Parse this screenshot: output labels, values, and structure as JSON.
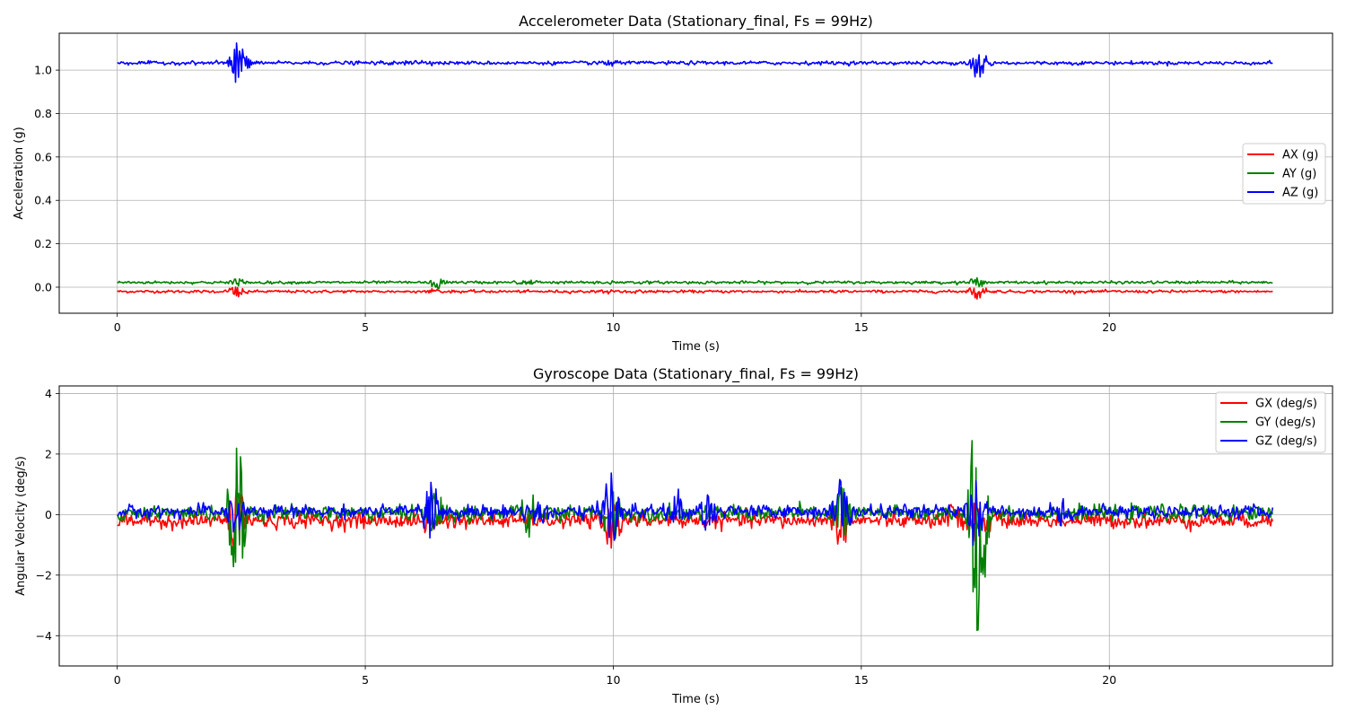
{
  "chart_data": [
    {
      "type": "line",
      "title": "Accelerometer Data (Stationary_final, Fs = 99Hz)",
      "xlabel": "Time (s)",
      "ylabel": "Acceleration (g)",
      "xlim": [
        -1.17,
        24.5
      ],
      "ylim": [
        -0.12,
        1.17
      ],
      "xticks": [
        0,
        5,
        10,
        15,
        20
      ],
      "yticks": [
        0.0,
        0.2,
        0.4,
        0.6,
        0.8,
        1.0
      ],
      "xtick_labels": [
        "0",
        "5",
        "10",
        "15",
        "20"
      ],
      "ytick_labels": [
        "0.0",
        "0.2",
        "0.4",
        "0.6",
        "0.8",
        "1.0"
      ],
      "grid": true,
      "legend_position": "center-right",
      "sample_rate_hz": 99,
      "duration_s": 23.3,
      "series": [
        {
          "name": "AX (g)",
          "color": "#ff0000",
          "baseline": -0.02,
          "noise": 0.003,
          "events": [
            {
              "t": 2.42,
              "amp": 0.03
            },
            {
              "t": 6.3,
              "amp": 0.008
            },
            {
              "t": 9.95,
              "amp": 0.008
            },
            {
              "t": 14.6,
              "amp": 0.006
            },
            {
              "t": 17.35,
              "amp": 0.03
            }
          ]
        },
        {
          "name": "AY (g)",
          "color": "#008000",
          "baseline": 0.022,
          "noise": 0.003,
          "events": [
            {
              "t": 2.45,
              "amp": 0.015
            },
            {
              "t": 6.45,
              "amp": 0.025
            },
            {
              "t": 8.3,
              "amp": 0.008
            },
            {
              "t": 9.95,
              "amp": 0.006
            },
            {
              "t": 17.35,
              "amp": 0.025
            }
          ]
        },
        {
          "name": "AZ (g)",
          "color": "#0000ff",
          "baseline": 1.033,
          "noise": 0.004,
          "events": [
            {
              "t": 2.45,
              "amp": 0.1
            },
            {
              "t": 5.95,
              "amp": 0.012
            },
            {
              "t": 9.95,
              "amp": 0.008
            },
            {
              "t": 17.35,
              "amp": 0.07
            }
          ]
        }
      ]
    },
    {
      "type": "line",
      "title": "Gyroscope Data (Stationary_final, Fs = 99Hz)",
      "xlabel": "Time (s)",
      "ylabel": "Angular Velocity (deg/s)",
      "xlim": [
        -1.17,
        24.5
      ],
      "ylim": [
        -5.0,
        4.25
      ],
      "xticks": [
        0,
        5,
        10,
        15,
        20
      ],
      "yticks": [
        -4,
        -2,
        0,
        2,
        4
      ],
      "xtick_labels": [
        "0",
        "5",
        "10",
        "15",
        "20"
      ],
      "ytick_labels": [
        "−4",
        "−2",
        "0",
        "2",
        "4"
      ],
      "grid": true,
      "legend_position": "top-right",
      "sample_rate_hz": 99,
      "duration_s": 23.3,
      "series": [
        {
          "name": "GX (deg/s)",
          "color": "#ff0000",
          "baseline": -0.2,
          "noise": 0.12,
          "events": [
            {
              "t": 2.4,
              "amp": 1.2
            },
            {
              "t": 6.3,
              "amp": 0.5
            },
            {
              "t": 9.95,
              "amp": 0.7
            },
            {
              "t": 14.6,
              "amp": 0.8
            },
            {
              "t": 16.9,
              "amp": 0.6
            },
            {
              "t": 17.4,
              "amp": 0.7
            }
          ]
        },
        {
          "name": "GY (deg/s)",
          "color": "#008000",
          "baseline": 0.05,
          "noise": 0.12,
          "events": [
            {
              "t": 2.42,
              "amp": 2.3
            },
            {
              "t": 6.4,
              "amp": 0.9
            },
            {
              "t": 8.3,
              "amp": 0.6
            },
            {
              "t": 9.95,
              "amp": 0.9
            },
            {
              "t": 14.6,
              "amp": 0.9
            },
            {
              "t": 17.35,
              "amp": 4.2
            }
          ]
        },
        {
          "name": "GZ (deg/s)",
          "color": "#0000ff",
          "baseline": 0.1,
          "noise": 0.1,
          "events": [
            {
              "t": 2.4,
              "amp": 0.7
            },
            {
              "t": 6.3,
              "amp": 1.0
            },
            {
              "t": 8.6,
              "amp": 0.4
            },
            {
              "t": 9.95,
              "amp": 1.2
            },
            {
              "t": 11.3,
              "amp": 0.6
            },
            {
              "t": 11.9,
              "amp": 0.6
            },
            {
              "t": 14.6,
              "amp": 1.0
            },
            {
              "t": 17.3,
              "amp": 1.0
            },
            {
              "t": 19.1,
              "amp": 0.4
            }
          ]
        }
      ]
    }
  ]
}
